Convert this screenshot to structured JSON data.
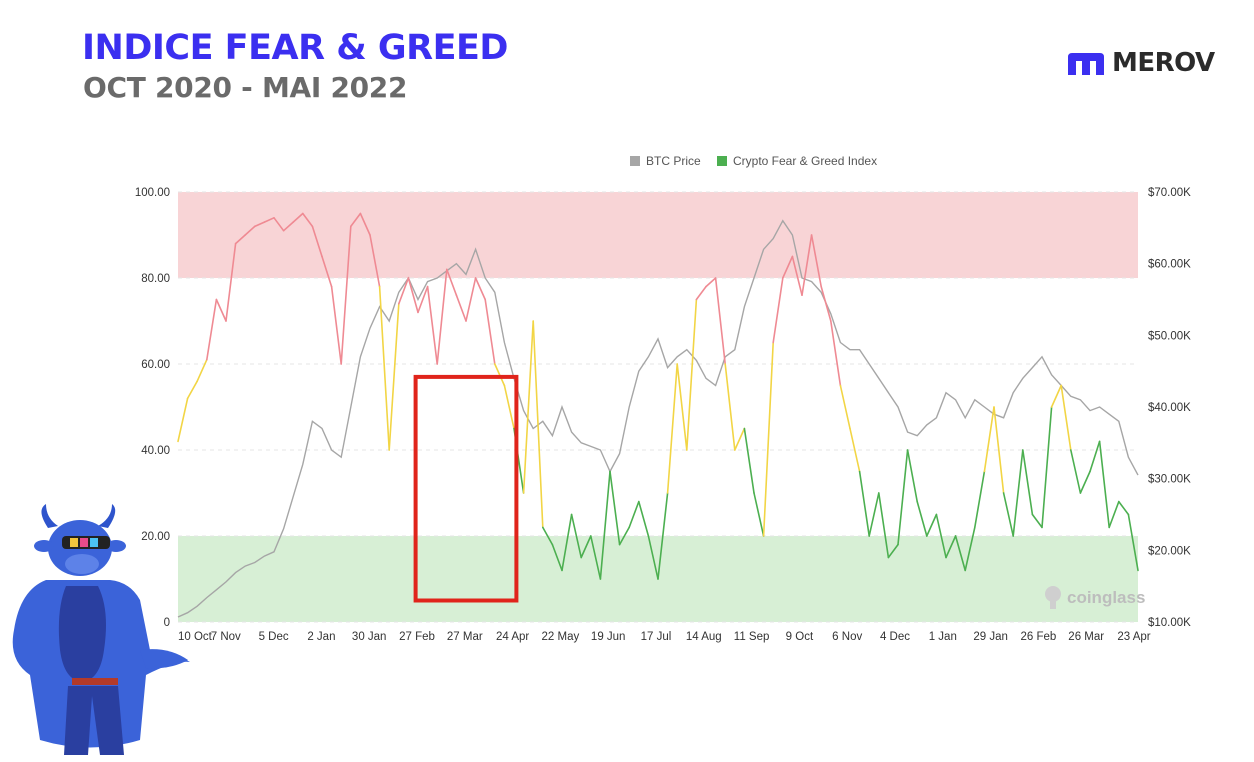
{
  "header": {
    "title": "INDICE FEAR & GREED",
    "subtitle": "OCT 2020 - MAI 2022",
    "brand": "MEROV"
  },
  "colors": {
    "title": "#3b2ff0",
    "brand_icon": "#3b2ff0",
    "btc_line": "#a6a6a6",
    "greed_zone": "#f8d4d6",
    "fear_zone": "#d7efd5",
    "extreme_greed_line": "#ef8a93",
    "neutral_line": "#f2d545",
    "fear_line": "#4caf50",
    "highlight_box": "#e0241b"
  },
  "chart_data": {
    "type": "line",
    "legend": [
      "BTC Price",
      "Crypto Fear & Greed Index"
    ],
    "legend_position": "top-center",
    "watermark": "coinglass",
    "x_tick_labels": [
      "10 Oct",
      "7 Nov",
      "5 Dec",
      "2 Jan",
      "30 Jan",
      "27 Feb",
      "27 Mar",
      "24 Apr",
      "22 May",
      "19 Jun",
      "17 Jul",
      "14 Aug",
      "11 Sep",
      "9 Oct",
      "6 Nov",
      "4 Dec",
      "1 Jan",
      "29 Jan",
      "26 Feb",
      "26 Mar",
      "23 Apr"
    ],
    "y_left_ticks": [
      "100.00",
      "80.00",
      "60.00",
      "40.00",
      "20.00",
      "0"
    ],
    "y_right_ticks": [
      "$70.00K",
      "$60.00K",
      "$50.00K",
      "$40.00K",
      "$30.00K",
      "$20.00K",
      "$10.00K"
    ],
    "ylim_left": [
      0,
      100
    ],
    "ylim_right": [
      10000,
      70000
    ],
    "bands": [
      {
        "from": 80,
        "to": 100,
        "label": "greed"
      },
      {
        "from": 0,
        "to": 20,
        "label": "fear"
      }
    ],
    "highlight_range": {
      "x_from": 49.5,
      "x_to": 70.5,
      "y_from": 5,
      "y_to": 57
    },
    "series": [
      {
        "name": "BTC Price",
        "x": [
          0,
          2,
          4,
          6,
          8,
          10,
          12,
          14,
          16,
          18,
          20,
          22,
          24,
          26,
          28,
          30,
          32,
          34,
          36,
          38,
          40,
          42,
          44,
          46,
          48,
          50,
          52,
          54,
          56,
          58,
          60,
          62,
          64,
          66,
          68,
          70,
          72,
          74,
          76,
          78,
          80,
          82,
          84,
          86,
          88,
          90,
          92,
          94,
          96,
          98,
          100,
          102,
          104,
          106,
          108,
          110,
          112,
          114,
          116,
          118,
          120,
          122,
          124,
          126,
          128,
          130,
          132,
          134,
          136,
          138,
          140,
          142,
          144,
          146,
          148,
          150,
          152,
          154,
          156,
          158,
          160,
          162,
          164,
          166,
          168,
          170,
          172,
          174,
          176,
          178,
          180,
          182,
          184,
          186,
          188,
          190,
          192,
          194,
          196,
          198,
          200
        ],
        "values": [
          10700,
          11300,
          12200,
          13400,
          14500,
          15600,
          16900,
          17800,
          18300,
          19200,
          19800,
          23000,
          27500,
          32000,
          38000,
          37000,
          34000,
          33000,
          40000,
          47000,
          51000,
          54000,
          52000,
          56000,
          58000,
          55000,
          57500,
          58000,
          59000,
          60000,
          58500,
          62000,
          58000,
          56000,
          49000,
          44000,
          39500,
          37000,
          38000,
          36000,
          40000,
          36500,
          35000,
          34500,
          34000,
          31000,
          33500,
          40000,
          45000,
          47000,
          49500,
          45500,
          47000,
          48000,
          46500,
          44000,
          43000,
          47000,
          48000,
          54000,
          58000,
          62000,
          63500,
          66000,
          64000,
          58000,
          57500,
          56000,
          53000,
          49000,
          48000,
          48000,
          46000,
          44000,
          42000,
          40000,
          36500,
          36000,
          37500,
          38500,
          42000,
          41000,
          38500,
          41000,
          40000,
          39000,
          38500,
          42000,
          44000,
          45500,
          47000,
          44500,
          43000,
          41500,
          41000,
          39500,
          40000,
          39000,
          38000,
          33000,
          30500
        ]
      },
      {
        "name": "Crypto Fear & Greed Index",
        "x": [
          0,
          2,
          4,
          6,
          8,
          10,
          12,
          14,
          16,
          18,
          20,
          22,
          24,
          26,
          28,
          30,
          32,
          34,
          36,
          38,
          40,
          42,
          44,
          46,
          48,
          50,
          52,
          54,
          56,
          58,
          60,
          62,
          64,
          66,
          68,
          70,
          72,
          74,
          76,
          78,
          80,
          82,
          84,
          86,
          88,
          90,
          92,
          94,
          96,
          98,
          100,
          102,
          104,
          106,
          108,
          110,
          112,
          114,
          116,
          118,
          120,
          122,
          124,
          126,
          128,
          130,
          132,
          134,
          136,
          138,
          140,
          142,
          144,
          146,
          148,
          150,
          152,
          154,
          156,
          158,
          160,
          162,
          164,
          166,
          168,
          170,
          172,
          174,
          176,
          178,
          180,
          182,
          184,
          186,
          188,
          190,
          192,
          194,
          196,
          198,
          200
        ],
        "values": [
          42,
          52,
          56,
          61,
          75,
          70,
          88,
          90,
          92,
          93,
          94,
          91,
          93,
          95,
          92,
          85,
          78,
          60,
          92,
          95,
          90,
          78,
          40,
          74,
          80,
          72,
          78,
          60,
          82,
          76,
          70,
          80,
          75,
          60,
          55,
          45,
          30,
          70,
          22,
          18,
          12,
          25,
          15,
          20,
          10,
          35,
          18,
          22,
          28,
          20,
          10,
          30,
          60,
          40,
          75,
          78,
          80,
          60,
          40,
          45,
          30,
          20,
          65,
          80,
          85,
          76,
          90,
          78,
          70,
          55,
          45,
          35,
          20,
          30,
          15,
          18,
          40,
          28,
          20,
          25,
          15,
          20,
          12,
          22,
          35,
          50,
          30,
          20,
          40,
          25,
          22,
          50,
          55,
          40,
          30,
          35,
          42,
          22,
          28,
          25,
          12
        ]
      }
    ]
  }
}
